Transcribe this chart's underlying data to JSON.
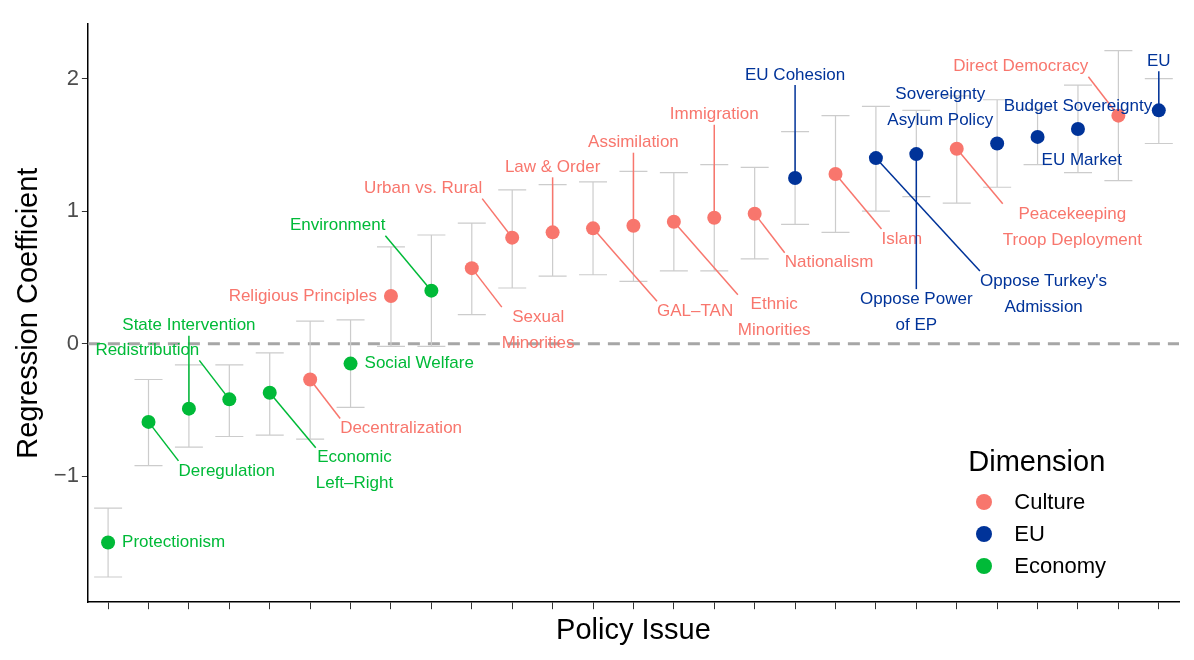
{
  "chart_data": {
    "type": "scatter",
    "xlabel": "Policy Issue",
    "ylabel": "Regression Coefficient",
    "legend_title": "Dimension",
    "legend": "bottom right",
    "marker": "circle",
    "tick_labels": "y",
    "categories": [
      null,
      null,
      null,
      null,
      null,
      null,
      null,
      null,
      null,
      null,
      null,
      null,
      null,
      null,
      null,
      null,
      null,
      null,
      null,
      null,
      null,
      null,
      null,
      null,
      null,
      null,
      null
    ],
    "ylim": [
      -1.95,
      2.41
    ],
    "yticks": [
      {
        "value": -1,
        "label": "−1"
      },
      0,
      1,
      2
    ],
    "ref_lines": [
      {
        "axis": "y",
        "value": 0,
        "color": "#a6a6a6",
        "line_style": "dashed"
      }
    ],
    "series": [
      {
        "name": "Culture",
        "color": "#f8766d",
        "values": [
          null,
          null,
          null,
          null,
          null,
          -0.27,
          null,
          0.36,
          null,
          0.57,
          0.8,
          0.84,
          0.87,
          0.89,
          0.92,
          0.95,
          0.98,
          null,
          1.28,
          null,
          null,
          1.47,
          null,
          null,
          null,
          1.72,
          null
        ],
        "errors": [
          null,
          null,
          null,
          null,
          null,
          [
            -0.72,
            0.17
          ],
          null,
          [
            -0.02,
            0.73
          ],
          null,
          [
            0.22,
            0.91
          ],
          [
            0.42,
            1.16
          ],
          [
            0.51,
            1.2
          ],
          [
            0.52,
            1.22
          ],
          [
            0.47,
            1.3
          ],
          [
            0.55,
            1.29
          ],
          [
            0.55,
            1.35
          ],
          [
            0.64,
            1.33
          ],
          null,
          [
            0.84,
            1.72
          ],
          null,
          null,
          [
            1.06,
            1.87
          ],
          null,
          null,
          null,
          [
            1.23,
            2.21
          ],
          null
        ],
        "value_labels": [
          null,
          null,
          null,
          null,
          null,
          "Decentralization",
          null,
          "Religious Principles",
          null,
          "Sexual\nMinorities",
          "Urban vs. Rural",
          "Law & Order",
          "GAL–TAN",
          "Assimilation",
          "Ethnic\nMinorities",
          "Immigration",
          "Nationalism",
          null,
          "Islam",
          null,
          null,
          "Peacekeeping\nTroop Deployment",
          null,
          null,
          null,
          "Direct Democracy",
          null
        ]
      },
      {
        "name": "EU",
        "color": "#003399",
        "values": [
          null,
          null,
          null,
          null,
          null,
          null,
          null,
          null,
          null,
          null,
          null,
          null,
          null,
          null,
          null,
          null,
          null,
          1.25,
          null,
          1.4,
          1.43,
          null,
          1.51,
          1.56,
          1.62,
          null,
          1.76
        ],
        "errors": [
          null,
          null,
          null,
          null,
          null,
          null,
          null,
          null,
          null,
          null,
          null,
          null,
          null,
          null,
          null,
          null,
          null,
          [
            0.9,
            1.6
          ],
          null,
          [
            1.0,
            1.79
          ],
          [
            1.11,
            1.76
          ],
          null,
          [
            1.18,
            1.84
          ],
          [
            1.35,
            1.77
          ],
          [
            1.29,
            1.95
          ],
          null,
          [
            1.51,
            2.0
          ]
        ],
        "value_labels": [
          null,
          null,
          null,
          null,
          null,
          null,
          null,
          null,
          null,
          null,
          null,
          null,
          null,
          null,
          null,
          null,
          null,
          "EU Cohesion",
          null,
          "Oppose Turkey's\nAdmission",
          "Oppose Power\nof EP",
          null,
          "Sovereignty\nAsylum Policy",
          "EU Market",
          "Budget Sovereignty",
          null,
          "EU"
        ]
      },
      {
        "name": "Economy",
        "color": "#00ba38",
        "values": [
          -1.5,
          -0.59,
          -0.49,
          -0.42,
          -0.37,
          null,
          -0.15,
          null,
          0.4,
          null,
          null,
          null,
          null,
          null,
          null,
          null,
          null,
          null,
          null,
          null,
          null,
          null,
          null,
          null,
          null,
          null,
          null
        ],
        "errors": [
          [
            -1.76,
            -1.24
          ],
          [
            -0.92,
            -0.27
          ],
          [
            -0.78,
            -0.16
          ],
          [
            -0.7,
            -0.16
          ],
          [
            -0.69,
            -0.07
          ],
          null,
          [
            -0.48,
            0.18
          ],
          null,
          [
            -0.02,
            0.82
          ],
          null,
          null,
          null,
          null,
          null,
          null,
          null,
          null,
          null,
          null,
          null,
          null,
          null,
          null,
          null,
          null,
          null,
          null
        ],
        "value_labels": [
          "Protectionism",
          "Deregulation",
          "State Intervention",
          "Redistribution",
          "Economic\nLeft–Right",
          null,
          "Social Welfare",
          null,
          "Environment",
          null,
          null,
          null,
          null,
          null,
          null,
          null,
          null,
          null,
          null,
          null,
          null,
          null,
          null,
          null,
          null,
          null,
          null
        ]
      }
    ]
  }
}
